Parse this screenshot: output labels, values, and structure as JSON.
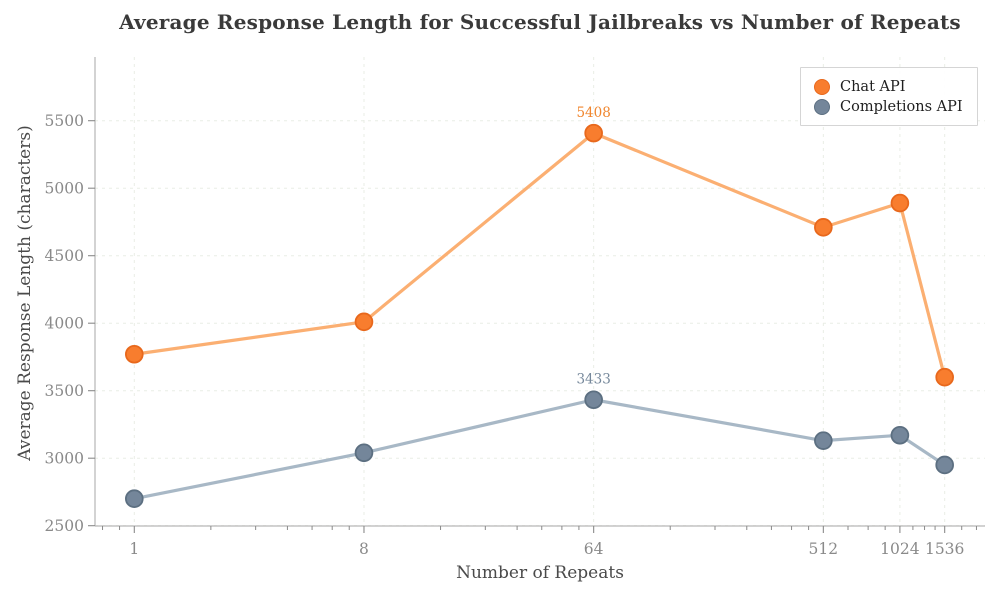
{
  "chart_data": {
    "type": "line",
    "title": "Average Response Length for Successful Jailbreaks vs Number of Repeats",
    "xlabel": "Number of Repeats",
    "ylabel": "Average Response Length (characters)",
    "x_scale": "log",
    "grid": true,
    "legend_position": "upper right",
    "x": [
      1,
      8,
      64,
      512,
      1024,
      1536
    ],
    "x_ticks": [
      1,
      8,
      64,
      512,
      1024,
      1536
    ],
    "x_minor_ticks": [
      0.75,
      0.875,
      2,
      3,
      4,
      5,
      6,
      7,
      16,
      24,
      32,
      40,
      48,
      56,
      128,
      192,
      256,
      320,
      384,
      448,
      640,
      768,
      896,
      1152,
      1280,
      1408,
      1792,
      2048
    ],
    "y_ticks": [
      2500,
      3000,
      3500,
      4000,
      4500,
      5000,
      5500
    ],
    "ylim": [
      2500,
      5975
    ],
    "series": [
      {
        "name": "Chat API",
        "marker_color": "#f87d2e",
        "marker_edge_color": "#e8681c",
        "line_color": "#fbaf72",
        "values": [
          3770,
          4010,
          5408,
          4710,
          4890,
          3600
        ]
      },
      {
        "name": "Completions API",
        "marker_color": "#74869a",
        "marker_edge_color": "#5c6f81",
        "line_color": "#a8b8c6",
        "values": [
          2700,
          3040,
          3433,
          3130,
          3170,
          2950
        ]
      }
    ],
    "annotations": [
      {
        "text": "5408",
        "x": 64,
        "y": 5408,
        "color": "#f0862f"
      },
      {
        "text": "3433",
        "x": 64,
        "y": 3433,
        "color": "#76889b"
      }
    ]
  },
  "styles": {
    "background": "#ffffff",
    "grid_color": "#e9ede5",
    "spine_color": "#b6b6b6",
    "tick_color": "#8a8a8a",
    "tick_label_color": "#8a8a8a",
    "axis_label_color": "#4a4a4a",
    "title_color": "#3a3a3a",
    "legend_border_color": "#d5d5d5",
    "legend_text_color": "#1f1f1f"
  }
}
